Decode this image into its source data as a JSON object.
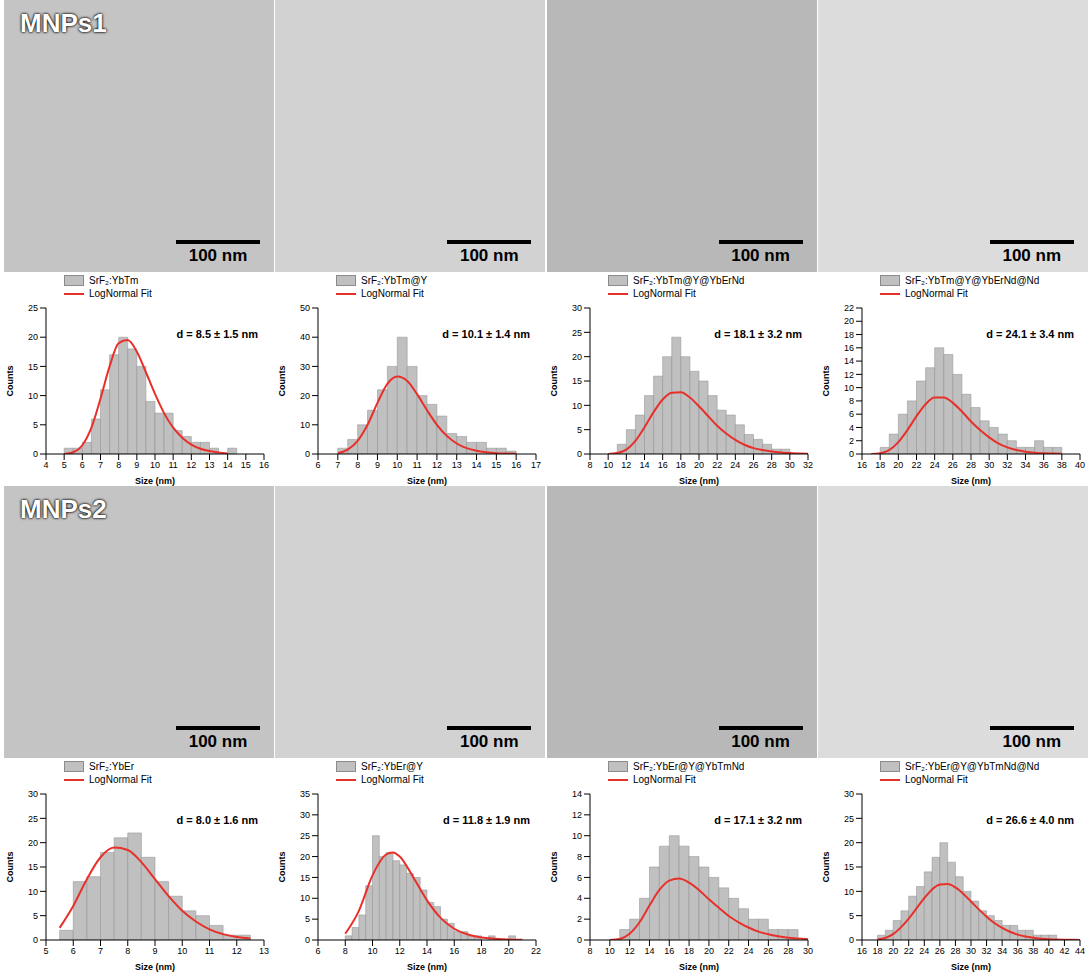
{
  "images": [
    {
      "label": "MNPs1",
      "scale_bars": [
        "100 nm",
        "100 nm",
        "100 nm",
        "100 nm"
      ]
    },
    {
      "label": "MNPs2",
      "scale_bars": [
        "100 nm",
        "100 nm",
        "100 nm",
        "100 nm"
      ]
    }
  ],
  "chart_data": [
    {
      "type": "histogram",
      "annotation": "d = 8.5 ± 1.5 nm",
      "xlabel": "Size (nm)",
      "ylabel": "Counts",
      "legend": "top",
      "xlim": [
        4,
        16
      ],
      "xticks": [
        4,
        5,
        6,
        7,
        8,
        9,
        10,
        11,
        12,
        13,
        14,
        15,
        16
      ],
      "ylim": [
        0,
        25
      ],
      "yticks": [
        0,
        5,
        10,
        15,
        20,
        25
      ],
      "bins": [
        5,
        5.5,
        6,
        6.5,
        7,
        7.5,
        8,
        8.5,
        9,
        9.5,
        10,
        10.5,
        11,
        11.5,
        12,
        12.5,
        13,
        13.5,
        14,
        14.5
      ],
      "series": [
        {
          "name": "SrF₂:YbTm",
          "type": "bar",
          "color": "#c0c0c0",
          "values": [
            1,
            1,
            2,
            6,
            11,
            17,
            20,
            18,
            15,
            9,
            7,
            7,
            4,
            3,
            2,
            2,
            1,
            0,
            1
          ]
        },
        {
          "name": "LogNormal Fit",
          "type": "line",
          "color": "#e8302a",
          "x": [
            5,
            5.5,
            6,
            6.5,
            7,
            7.5,
            8,
            8.5,
            9,
            9.5,
            10,
            10.5,
            11,
            11.5,
            12,
            12.5,
            13,
            13.5,
            14
          ],
          "values": [
            0,
            0.3,
            1.5,
            4.5,
            9.5,
            15,
            19,
            19.5,
            17.5,
            14,
            10.3,
            7,
            4.5,
            2.8,
            1.6,
            0.9,
            0.5,
            0.25,
            0.1
          ]
        }
      ]
    },
    {
      "type": "histogram",
      "annotation": "d = 10.1 ± 1.4 nm",
      "xlabel": "Size (nm)",
      "ylabel": "Counts",
      "legend": "top",
      "xlim": [
        6,
        17
      ],
      "xticks": [
        6,
        7,
        8,
        9,
        10,
        11,
        12,
        13,
        14,
        15,
        16,
        17
      ],
      "ylim": [
        0,
        50
      ],
      "yticks": [
        0,
        10,
        20,
        30,
        40,
        50
      ],
      "bins": [
        7,
        7.5,
        8,
        8.5,
        9,
        9.5,
        10,
        10.5,
        11,
        11.5,
        12,
        12.5,
        13,
        13.5,
        14,
        14.5,
        15,
        15.5,
        16
      ],
      "series": [
        {
          "name": "SrF₂:YbTm@Y",
          "type": "bar",
          "color": "#c0c0c0",
          "values": [
            2,
            5,
            10,
            15,
            22,
            30,
            40,
            30,
            20,
            17,
            13,
            7,
            6,
            4,
            4,
            2,
            2,
            1
          ]
        },
        {
          "name": "LogNormal Fit",
          "type": "line",
          "color": "#e8302a",
          "x": [
            7,
            7.5,
            8,
            8.5,
            9,
            9.5,
            10,
            10.5,
            11,
            11.5,
            12,
            12.5,
            13,
            13.5,
            14,
            14.5,
            15,
            15.5,
            16
          ],
          "values": [
            0.3,
            1.5,
            4.5,
            10,
            17.5,
            24,
            26.5,
            25,
            20.5,
            15,
            10,
            6.2,
            3.6,
            2,
            1.1,
            0.6,
            0.3,
            0.15,
            0.07
          ]
        }
      ]
    },
    {
      "type": "histogram",
      "annotation": "d = 18.1 ± 3.2 nm",
      "xlabel": "Size (nm)",
      "ylabel": "Counts",
      "legend": "top",
      "xlim": [
        8,
        32
      ],
      "xticks": [
        8,
        10,
        12,
        14,
        16,
        18,
        20,
        22,
        24,
        26,
        28,
        30,
        32
      ],
      "ylim": [
        0,
        30
      ],
      "yticks": [
        0,
        5,
        10,
        15,
        20,
        25,
        30
      ],
      "bins": [
        11,
        12,
        13,
        14,
        15,
        16,
        17,
        18,
        19,
        20,
        21,
        22,
        23,
        24,
        25,
        26,
        27,
        28,
        29,
        30
      ],
      "series": [
        {
          "name": "SrF₂:YbTm@Y@YbErNd",
          "type": "bar",
          "color": "#c0c0c0",
          "values": [
            2,
            5,
            8,
            12,
            16,
            20,
            24,
            20,
            17,
            15,
            12,
            9,
            8,
            6,
            4,
            3,
            2,
            1,
            1
          ]
        },
        {
          "name": "LogNormal Fit",
          "type": "line",
          "color": "#e8302a",
          "x": [
            10,
            11,
            12,
            13,
            14,
            15,
            16,
            17,
            18,
            19,
            20,
            21,
            22,
            23,
            24,
            25,
            26,
            27,
            28,
            29,
            30,
            31,
            32
          ],
          "values": [
            0,
            0.2,
            0.9,
            2.7,
            5.5,
            8.6,
            11.2,
            12.6,
            12.7,
            11.6,
            9.8,
            7.8,
            5.8,
            4.2,
            2.9,
            1.9,
            1.2,
            0.8,
            0.5,
            0.3,
            0.2,
            0.1,
            0.05
          ]
        }
      ]
    },
    {
      "type": "histogram",
      "annotation": "d = 24.1 ± 3.4 nm",
      "xlabel": "Size (nm)",
      "ylabel": "Counts",
      "legend": "top",
      "xlim": [
        16,
        40
      ],
      "xticks": [
        16,
        18,
        20,
        22,
        24,
        26,
        28,
        30,
        32,
        34,
        36,
        38,
        40
      ],
      "ylim": [
        0,
        22
      ],
      "yticks": [
        0,
        2,
        4,
        6,
        8,
        10,
        12,
        14,
        16,
        18,
        20,
        22
      ],
      "bins": [
        18,
        19,
        20,
        21,
        22,
        23,
        24,
        25,
        26,
        27,
        28,
        29,
        30,
        31,
        32,
        33,
        34,
        35,
        36,
        37,
        38
      ],
      "series": [
        {
          "name": "SrF₂:YbTm@Y@YbErNd@Nd",
          "type": "bar",
          "color": "#c0c0c0",
          "values": [
            1,
            3,
            6,
            8,
            11,
            13,
            16,
            15,
            12,
            9,
            7,
            5,
            4,
            3,
            2,
            1,
            1,
            2,
            1,
            1
          ]
        },
        {
          "name": "LogNormal Fit",
          "type": "line",
          "color": "#e8302a",
          "x": [
            17,
            18,
            19,
            20,
            21,
            22,
            23,
            24,
            25,
            26,
            27,
            28,
            29,
            30,
            31,
            32,
            33,
            34,
            35,
            36,
            37,
            38
          ],
          "values": [
            0,
            0.1,
            0.6,
            1.8,
            3.6,
            5.7,
            7.5,
            8.5,
            8.5,
            7.7,
            6.4,
            4.9,
            3.6,
            2.5,
            1.6,
            1,
            0.6,
            0.35,
            0.2,
            0.1,
            0.06,
            0.03
          ]
        }
      ]
    },
    {
      "type": "histogram",
      "annotation": "d = 8.0 ± 1.6 nm",
      "xlabel": "Size (nm)",
      "ylabel": "Counts",
      "legend": "top",
      "xlim": [
        5,
        13
      ],
      "xticks": [
        5,
        6,
        7,
        8,
        9,
        10,
        11,
        12,
        13
      ],
      "ylim": [
        0,
        30
      ],
      "yticks": [
        0,
        5,
        10,
        15,
        20,
        25,
        30
      ],
      "bins": [
        5.5,
        6,
        6.5,
        7,
        7.5,
        8,
        8.5,
        9,
        9.5,
        10,
        10.5,
        11,
        11.5,
        12,
        12.5
      ],
      "series": [
        {
          "name": "SrF₂:YbEr",
          "type": "bar",
          "color": "#c0c0c0",
          "values": [
            2,
            12,
            13,
            18,
            21,
            22,
            17,
            12,
            9,
            6,
            5,
            3,
            1,
            1
          ]
        },
        {
          "name": "LogNormal Fit",
          "type": "line",
          "color": "#e8302a",
          "x": [
            5.5,
            6,
            6.5,
            7,
            7.5,
            8,
            8.5,
            9,
            9.5,
            10,
            10.5,
            11,
            11.5,
            12,
            12.5
          ],
          "values": [
            2.5,
            7,
            12.5,
            17,
            19,
            18.5,
            16,
            12.5,
            9,
            6,
            3.8,
            2.2,
            1.2,
            0.6,
            0.3
          ]
        }
      ]
    },
    {
      "type": "histogram",
      "annotation": "d = 11.8 ± 1.9 nm",
      "xlabel": "Size (nm)",
      "ylabel": "Counts",
      "legend": "top",
      "xlim": [
        6,
        22
      ],
      "xticks": [
        6,
        8,
        10,
        12,
        14,
        16,
        18,
        20,
        22
      ],
      "ylim": [
        0,
        35
      ],
      "yticks": [
        0,
        5,
        10,
        15,
        20,
        25,
        30,
        35
      ],
      "bins": [
        8,
        8.5,
        9,
        9.5,
        10,
        10.5,
        11,
        11.5,
        12,
        12.5,
        13,
        13.5,
        14,
        14.5,
        15,
        15.5,
        16,
        16.5,
        17,
        17.5,
        18,
        18.5,
        19,
        19.5,
        20,
        20.5,
        21
      ],
      "series": [
        {
          "name": "SrF₂:YbEr@Y",
          "type": "bar",
          "color": "#c0c0c0",
          "values": [
            1,
            3,
            6,
            13,
            25,
            20,
            21,
            19,
            18,
            16,
            15,
            12,
            9,
            8,
            5,
            4,
            2,
            2,
            1,
            1,
            0,
            1,
            0,
            0,
            1,
            0
          ]
        },
        {
          "name": "LogNormal Fit",
          "type": "line",
          "color": "#e8302a",
          "x": [
            8,
            9,
            10,
            11,
            11.5,
            12,
            13,
            14,
            15,
            16,
            17,
            18,
            19,
            20,
            21
          ],
          "values": [
            1.5,
            7,
            15.5,
            20.5,
            21,
            20,
            15,
            9.5,
            5.3,
            2.7,
            1.3,
            0.6,
            0.3,
            0.12,
            0.05
          ]
        }
      ]
    },
    {
      "type": "histogram",
      "annotation": "d = 17.1 ± 3.2 nm",
      "xlabel": "Size (nm)",
      "ylabel": "Counts",
      "legend": "top",
      "xlim": [
        8,
        30
      ],
      "xticks": [
        8,
        10,
        12,
        14,
        16,
        18,
        20,
        22,
        24,
        26,
        28,
        30
      ],
      "ylim": [
        0,
        14
      ],
      "yticks": [
        0,
        2,
        4,
        6,
        8,
        10,
        12,
        14
      ],
      "bins": [
        11,
        12,
        13,
        14,
        15,
        16,
        17,
        18,
        19,
        20,
        21,
        22,
        23,
        24,
        25,
        26,
        27,
        28,
        29
      ],
      "series": [
        {
          "name": "SrF₂:YbEr@Y@YbTmNd",
          "type": "bar",
          "color": "#c0c0c0",
          "values": [
            1,
            2,
            4,
            7,
            9,
            10,
            9,
            8,
            7,
            6,
            5,
            4,
            3,
            2,
            2,
            1,
            1,
            1
          ]
        },
        {
          "name": "LogNormal Fit",
          "type": "line",
          "color": "#e8302a",
          "x": [
            10,
            11,
            12,
            13,
            14,
            15,
            16,
            17,
            18,
            19,
            20,
            21,
            22,
            23,
            24,
            25,
            26,
            27,
            28,
            29,
            30
          ],
          "values": [
            0,
            0.1,
            0.6,
            1.7,
            3.3,
            4.8,
            5.7,
            5.9,
            5.5,
            4.8,
            3.9,
            3.1,
            2.3,
            1.7,
            1.2,
            0.8,
            0.55,
            0.35,
            0.22,
            0.14,
            0.08
          ]
        }
      ]
    },
    {
      "type": "histogram",
      "annotation": "d = 26.6 ± 4.0 nm",
      "xlabel": "Size (nm)",
      "ylabel": "Counts",
      "legend": "top",
      "xlim": [
        16,
        44
      ],
      "xticks": [
        16,
        18,
        20,
        22,
        24,
        26,
        28,
        30,
        32,
        34,
        36,
        38,
        40,
        42,
        44
      ],
      "ylim": [
        0,
        30
      ],
      "yticks": [
        0,
        5,
        10,
        15,
        20,
        25,
        30
      ],
      "bins": [
        18,
        19,
        20,
        21,
        22,
        23,
        24,
        25,
        26,
        27,
        28,
        29,
        30,
        31,
        32,
        33,
        34,
        35,
        36,
        37,
        38,
        39,
        40,
        41,
        42
      ],
      "series": [
        {
          "name": "SrF₂:YbEr@Y@YbTmNd@Nd",
          "type": "bar",
          "color": "#c0c0c0",
          "values": [
            1,
            2,
            4,
            6,
            9,
            11,
            14,
            17,
            20,
            16,
            13,
            10,
            8,
            6,
            5,
            4,
            3,
            3,
            2,
            2,
            1,
            1,
            1,
            0
          ]
        },
        {
          "name": "LogNormal Fit",
          "type": "line",
          "color": "#e8302a",
          "x": [
            18,
            19,
            20,
            21,
            22,
            23,
            24,
            25,
            26,
            27,
            28,
            29,
            30,
            31,
            32,
            33,
            34,
            35,
            36,
            37,
            38,
            39,
            40,
            41,
            42,
            43,
            44
          ],
          "values": [
            0.1,
            0.4,
            1.2,
            2.6,
            4.4,
            6.5,
            8.6,
            10.4,
            11.4,
            11.5,
            10.8,
            9.5,
            7.9,
            6.3,
            4.8,
            3.5,
            2.5,
            1.7,
            1.1,
            0.7,
            0.45,
            0.28,
            0.17,
            0.1,
            0.06,
            0.03,
            0.02
          ]
        }
      ]
    }
  ]
}
